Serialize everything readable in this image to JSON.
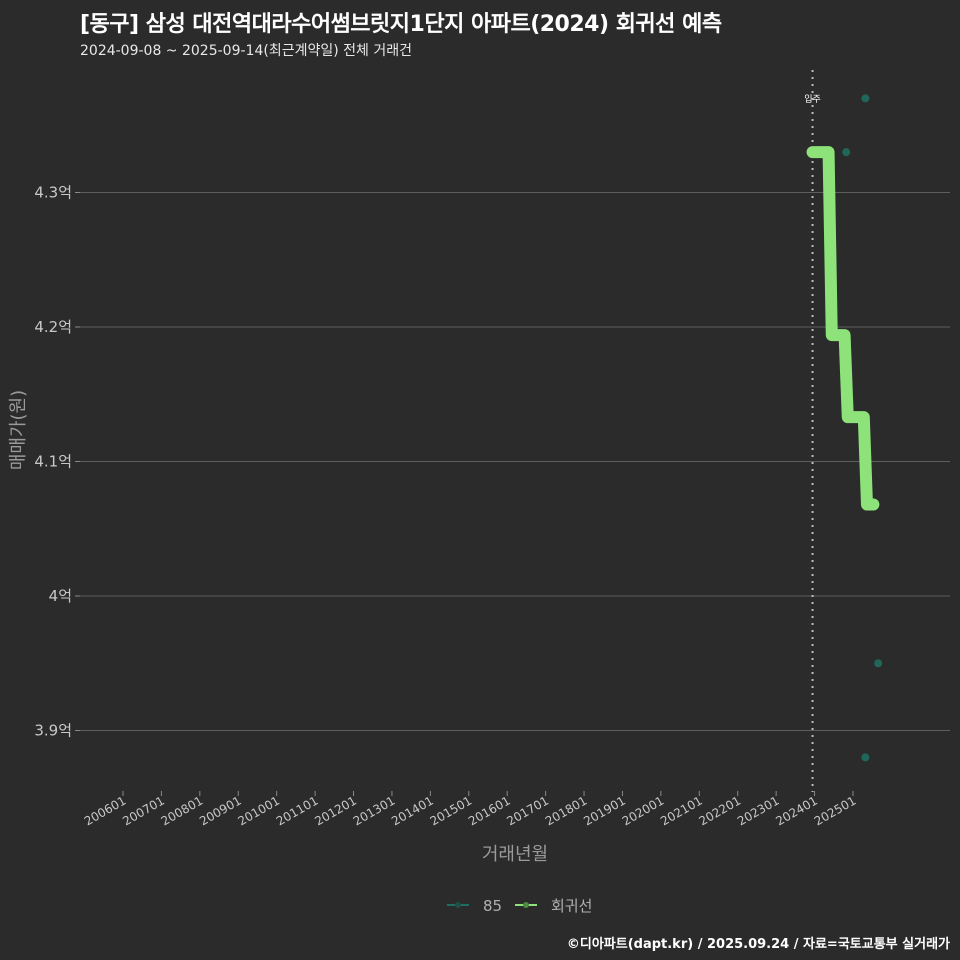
{
  "header": {
    "title": "[동구] 삼성 대전역대라수어썸브릿지1단지 아파트(2024) 회귀선 예측",
    "subtitle": "2024-09-08 ~ 2025-09-14(최근계약일) 전체 거래건"
  },
  "caption": "©디아파트(dapt.kr) / 2025.09.24 / 자료=국토교통부 실거래가",
  "chart_data": {
    "type": "line",
    "title": "[동구] 삼성 대전역대라수어썸브릿지1단지 아파트(2024) 회귀선 예측",
    "subtitle": "2024-09-08 ~ 2025-09-14(최근계약일) 전체 거래건",
    "xlabel": "거래년월",
    "ylabel": "매매가(원)",
    "x_ticks": [
      "200601",
      "200701",
      "200801",
      "200901",
      "201001",
      "201101",
      "201201",
      "201301",
      "201401",
      "201501",
      "201601",
      "201701",
      "201801",
      "201901",
      "202001",
      "202101",
      "202201",
      "202301",
      "202401",
      "202501"
    ],
    "y_ticks": [
      "3.9억",
      "4억",
      "4.1억",
      "4.2억",
      "4.3억"
    ],
    "y_tick_values": [
      3.9,
      4.0,
      4.1,
      4.2,
      4.3
    ],
    "ylim": [
      3.86,
      4.39
    ],
    "grid": true,
    "legend_position": "bottom",
    "annotation": {
      "label": "입주",
      "x": "2024-01",
      "style": "dotted vertical line"
    },
    "series": [
      {
        "name": "85",
        "kind": "scatter",
        "color": "#1f6e5e",
        "points": [
          {
            "x": "2024-09",
            "y": 4.33
          },
          {
            "x": "2025-03",
            "y": 4.37
          },
          {
            "x": "2025-03",
            "y": 3.88
          },
          {
            "x": "2025-07",
            "y": 3.95
          }
        ]
      },
      {
        "name": "회귀선",
        "kind": "step-line",
        "color": "#8de37a",
        "points": [
          {
            "x": "2024-01",
            "y": 4.33
          },
          {
            "x": "2024-06",
            "y": 4.33
          },
          {
            "x": "2024-07",
            "y": 4.194
          },
          {
            "x": "2024-11",
            "y": 4.194
          },
          {
            "x": "2024-12",
            "y": 4.133
          },
          {
            "x": "2025-05",
            "y": 4.133
          },
          {
            "x": "2025-06",
            "y": 4.068
          },
          {
            "x": "2025-08",
            "y": 4.068
          }
        ]
      }
    ]
  },
  "legend": {
    "items": [
      {
        "label": "85",
        "color": "#1f6e5e"
      },
      {
        "label": "회귀선",
        "color": "#8de37a"
      }
    ]
  }
}
